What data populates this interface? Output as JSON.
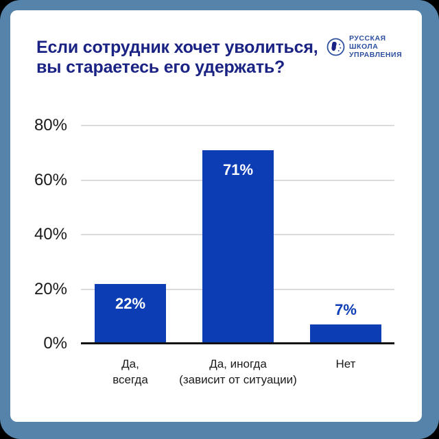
{
  "frame": {
    "outer_background": "#000000",
    "border_color": "#5583AA",
    "card_color": "#FFFFFF"
  },
  "header": {
    "title_line1": "Если сотрудник хочет уволиться,",
    "title_line2": "вы стараетесь его удержать?",
    "title_color": "#1A2384"
  },
  "logo": {
    "lines": [
      "РУССКАЯ",
      "ШКОЛА",
      "УПРАВЛЕНИЯ"
    ],
    "color": "#2D4FA0",
    "icon": "globe-face-icon"
  },
  "chart_data": {
    "type": "bar",
    "title": "Если сотрудник хочет уволиться, вы стараетесь его удержать?",
    "categories": [
      "Да, всегда",
      "Да, иногда (зависит от ситуации)",
      "Нет"
    ],
    "categories_lines": [
      [
        "Да,",
        "всегда"
      ],
      [
        "Да, иногда",
        "(зависит от ситуации)"
      ],
      [
        "Нет"
      ]
    ],
    "values": [
      22,
      71,
      7
    ],
    "value_labels": [
      "22%",
      "71%",
      "7%"
    ],
    "yticks": [
      80,
      60,
      40,
      20,
      0
    ],
    "ytick_labels": [
      "80%",
      "60%",
      "40%",
      "20%",
      "0%"
    ],
    "ylim": [
      0,
      80
    ],
    "xlabel": "",
    "ylabel": "",
    "grid": true,
    "legend": "none",
    "bar_color": "#0C3DB5",
    "label_inside_color": "#FFFFFF",
    "label_outside_color": "#0C3DB5",
    "gridline_color": "#DBDBDB",
    "axis_color": "#111111",
    "tick_label_color": "#1A1A1A"
  }
}
